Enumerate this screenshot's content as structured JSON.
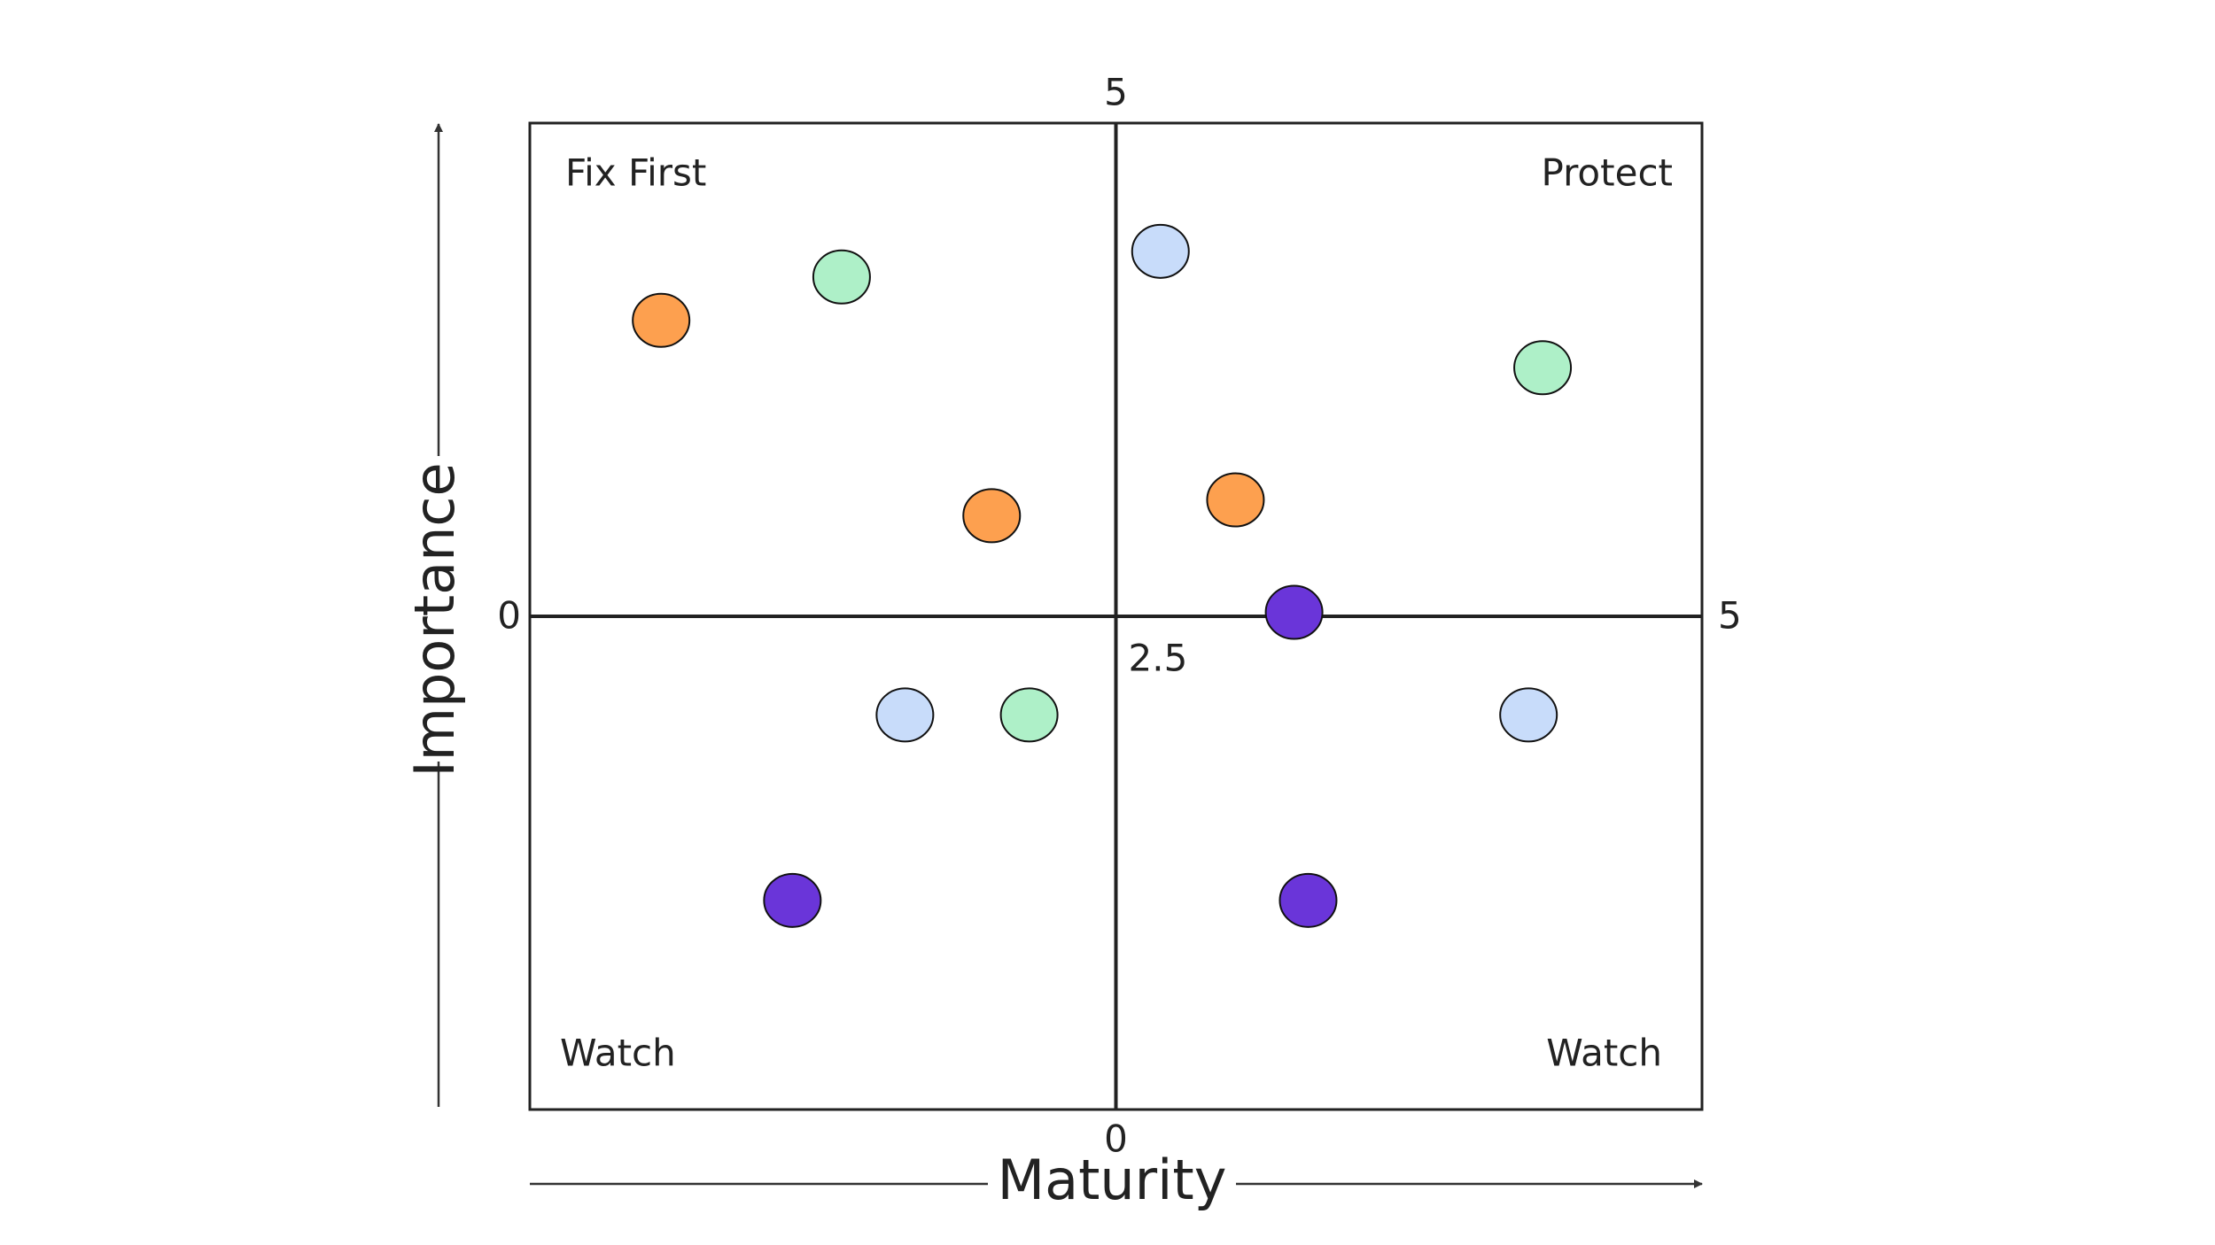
{
  "chart_data": {
    "type": "quadrant",
    "x_label": "Maturity",
    "y_label": "Importance",
    "xlim": [
      0,
      5
    ],
    "ylim": [
      0,
      5
    ],
    "xticks": [
      0,
      5
    ],
    "yticks": [
      0,
      5
    ],
    "midpoint": 2.5,
    "quadrants": {
      "top_left": "Fix First",
      "top_right": "Protect",
      "bottom_left": "Watch",
      "bottom_right": "Watch"
    },
    "series": [
      {
        "color": "#fda04f",
        "x": [
          0.56,
          1.97,
          3.01
        ],
        "values": [
          4.0,
          3.01,
          3.09
        ]
      },
      {
        "color": "#aef0c8",
        "x": [
          1.33,
          4.32,
          2.13
        ],
        "values": [
          4.22,
          3.76,
          2.0
        ]
      },
      {
        "color": "#c8dcfa",
        "x": [
          2.69,
          1.6,
          4.26
        ],
        "values": [
          4.35,
          2.0,
          2.0
        ]
      },
      {
        "color": "#6a35d9",
        "x": [
          3.26,
          1.12,
          3.32
        ],
        "values": [
          2.52,
          1.06,
          1.06
        ]
      }
    ]
  }
}
